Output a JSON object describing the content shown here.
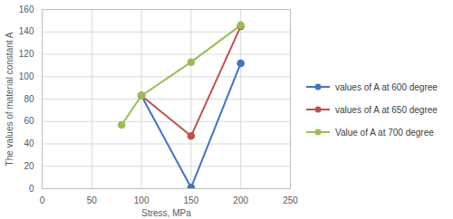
{
  "chart_data": {
    "type": "line",
    "x_label": "Stress, MPa",
    "y_label": "The values of material constant A",
    "x": [
      80,
      100,
      150,
      200
    ],
    "series": [
      {
        "name": "values of A at 600 degree",
        "color": "#4472c4",
        "marker": "circle",
        "values": [
          null,
          83,
          1,
          112
        ]
      },
      {
        "name": "values of A at 650 degree",
        "color": "#c0504d",
        "marker": "circle",
        "values": [
          null,
          83,
          47,
          145
        ]
      },
      {
        "name": "Value of A at 700 degree",
        "color": "#9bbb59",
        "marker": "circle",
        "values": [
          57,
          83,
          113,
          146
        ]
      }
    ],
    "xlim": [
      0,
      250
    ],
    "xticks": [
      0,
      50,
      100,
      150,
      200,
      250
    ],
    "ylim": [
      0,
      160
    ],
    "yticks": [
      0,
      20,
      40,
      60,
      80,
      100,
      120,
      140,
      160
    ],
    "grid": true,
    "legend": "right"
  }
}
